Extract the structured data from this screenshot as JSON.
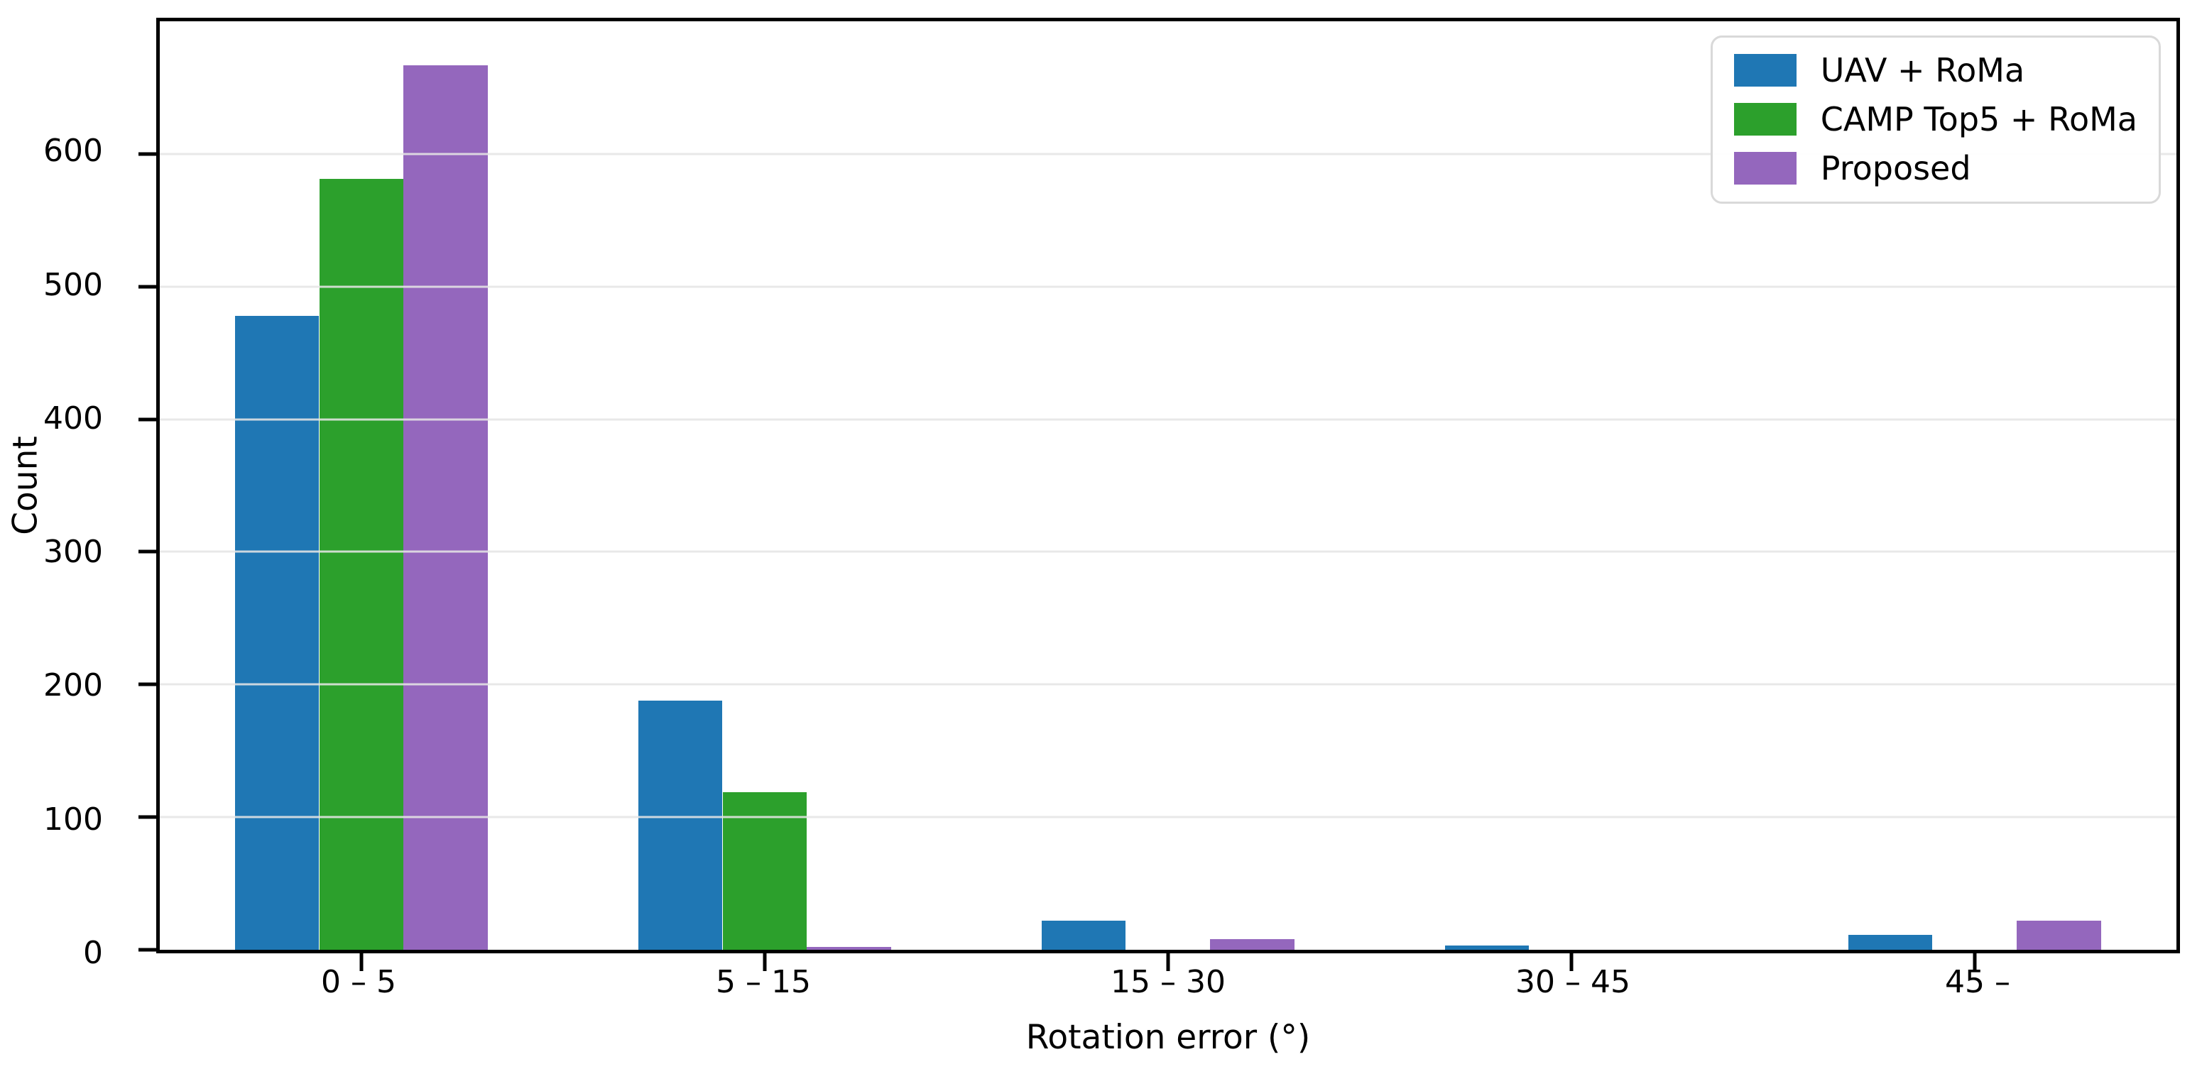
{
  "chart_data": {
    "type": "bar",
    "title": "",
    "xlabel": "Rotation error (°)",
    "ylabel": "Count",
    "categories": [
      "0 – 5",
      "5 – 15",
      "15 – 30",
      "30 – 45",
      "45 –"
    ],
    "series": [
      {
        "name": "UAV + RoMa",
        "color": "#1f77b4",
        "values": [
          478,
          188,
          22,
          3,
          11
        ]
      },
      {
        "name": "CAMP Top5 + RoMa",
        "color": "#2ca02c",
        "values": [
          581,
          119,
          0,
          0,
          0
        ]
      },
      {
        "name": "Proposed",
        "color": "#9467bd",
        "values": [
          667,
          2,
          8,
          0,
          22
        ]
      }
    ],
    "ylim": [
      0,
      700
    ],
    "yticks": [
      0,
      100,
      200,
      300,
      400,
      500,
      600
    ],
    "grid": "horizontal-over-bars",
    "grid_color": "#e5e5e5",
    "frame_color": "#000000",
    "background_color": "#ffffff",
    "legend_position": "top-right"
  }
}
